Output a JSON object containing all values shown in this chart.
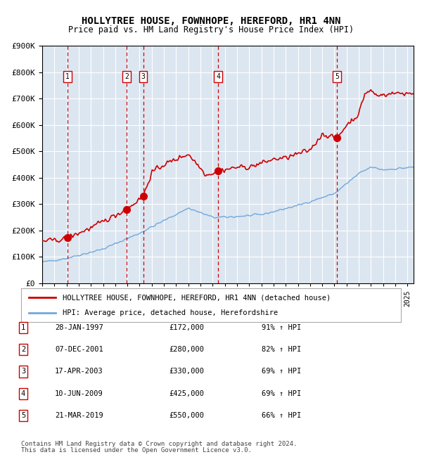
{
  "title": "HOLLYTREE HOUSE, FOWNHOPE, HEREFORD, HR1 4NN",
  "subtitle": "Price paid vs. HM Land Registry's House Price Index (HPI)",
  "legend_line1": "HOLLYTREE HOUSE, FOWNHOPE, HEREFORD, HR1 4NN (detached house)",
  "legend_line2": "HPI: Average price, detached house, Herefordshire",
  "footnote1": "Contains HM Land Registry data © Crown copyright and database right 2024.",
  "footnote2": "This data is licensed under the Open Government Licence v3.0.",
  "transactions": [
    {
      "num": 1,
      "date_label": "28-JAN-1997",
      "price": 172000,
      "hpi_pct": "91% ↑ HPI",
      "year": 1997.07
    },
    {
      "num": 2,
      "date_label": "07-DEC-2001",
      "price": 280000,
      "hpi_pct": "82% ↑ HPI",
      "year": 2001.93
    },
    {
      "num": 3,
      "date_label": "17-APR-2003",
      "price": 330000,
      "hpi_pct": "69% ↑ HPI",
      "year": 2003.29
    },
    {
      "num": 4,
      "date_label": "10-JUN-2009",
      "price": 425000,
      "hpi_pct": "69% ↑ HPI",
      "year": 2009.44
    },
    {
      "num": 5,
      "date_label": "21-MAR-2019",
      "price": 550000,
      "hpi_pct": "66% ↑ HPI",
      "year": 2019.22
    }
  ],
  "hpi_color": "#6fa8dc",
  "price_color": "#cc0000",
  "marker_color": "#cc0000",
  "vline_color": "#cc0000",
  "plot_bg": "#dce6f1",
  "grid_color": "#ffffff",
  "ylim": [
    0,
    900000
  ],
  "xlim_start": 1995.0,
  "xlim_end": 2025.5,
  "ytick_step": 100000
}
